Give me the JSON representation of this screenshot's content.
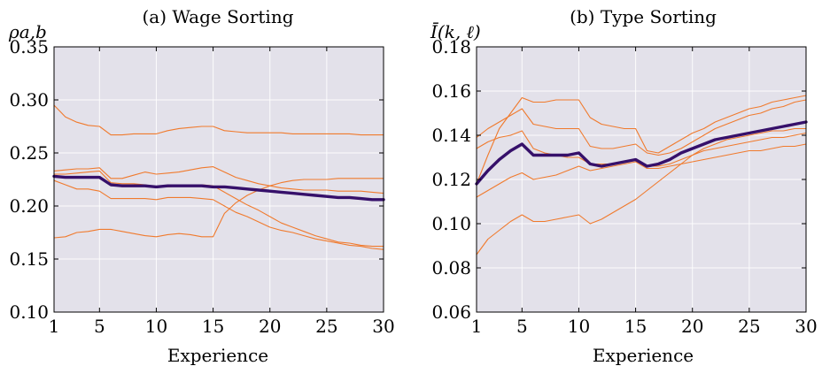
{
  "chart_data": [
    {
      "type": "line",
      "title": "(a) Wage Sorting",
      "ylabel": "ρa,b",
      "xlabel": "Experience",
      "xlim": [
        1,
        30
      ],
      "ylim": [
        0.1,
        0.35
      ],
      "xticks": [
        1,
        5,
        10,
        15,
        20,
        25,
        30
      ],
      "xtick_labels": [
        "1",
        "5",
        "10",
        "15",
        "20",
        "25",
        "30"
      ],
      "yticks": [
        0.1,
        0.15,
        0.2,
        0.25,
        0.3,
        0.35
      ],
      "ytick_labels": [
        "0.10",
        "0.15",
        "0.20",
        "0.25",
        "0.30",
        "0.35"
      ],
      "grid": true,
      "x": [
        1,
        2,
        3,
        4,
        5,
        6,
        7,
        8,
        9,
        10,
        11,
        12,
        13,
        14,
        15,
        16,
        17,
        18,
        19,
        20,
        21,
        22,
        23,
        24,
        25,
        26,
        27,
        28,
        29,
        30
      ],
      "series": [
        {
          "role": "thin",
          "color": "#f07a2d",
          "values": [
            0.295,
            0.284,
            0.279,
            0.276,
            0.275,
            0.267,
            0.267,
            0.268,
            0.268,
            0.268,
            0.271,
            0.273,
            0.274,
            0.275,
            0.275,
            0.271,
            0.27,
            0.269,
            0.269,
            0.269,
            0.269,
            0.268,
            0.268,
            0.268,
            0.268,
            0.268,
            0.268,
            0.267,
            0.267,
            0.267
          ]
        },
        {
          "role": "thin",
          "color": "#f07a2d",
          "values": [
            0.233,
            0.234,
            0.235,
            0.235,
            0.236,
            0.226,
            0.226,
            0.229,
            0.232,
            0.23,
            0.231,
            0.232,
            0.234,
            0.236,
            0.237,
            0.232,
            0.227,
            0.224,
            0.221,
            0.219,
            0.217,
            0.216,
            0.215,
            0.215,
            0.215,
            0.214,
            0.214,
            0.214,
            0.213,
            0.212
          ]
        },
        {
          "role": "thin",
          "color": "#f07a2d",
          "values": [
            0.23,
            0.23,
            0.231,
            0.232,
            0.233,
            0.222,
            0.221,
            0.221,
            0.22,
            0.218,
            0.218,
            0.219,
            0.22,
            0.22,
            0.219,
            0.213,
            0.207,
            0.201,
            0.196,
            0.19,
            0.184,
            0.18,
            0.176,
            0.172,
            0.169,
            0.166,
            0.165,
            0.163,
            0.162,
            0.162
          ]
        },
        {
          "role": "thin",
          "color": "#f07a2d",
          "values": [
            0.224,
            0.22,
            0.216,
            0.216,
            0.214,
            0.207,
            0.207,
            0.207,
            0.207,
            0.206,
            0.208,
            0.208,
            0.208,
            0.207,
            0.206,
            0.2,
            0.194,
            0.19,
            0.185,
            0.18,
            0.177,
            0.175,
            0.172,
            0.169,
            0.167,
            0.165,
            0.163,
            0.162,
            0.16,
            0.159
          ]
        },
        {
          "role": "thin",
          "color": "#f07a2d",
          "values": [
            0.17,
            0.171,
            0.175,
            0.176,
            0.178,
            0.178,
            0.176,
            0.174,
            0.172,
            0.171,
            0.173,
            0.174,
            0.173,
            0.171,
            0.171,
            0.193,
            0.203,
            0.21,
            0.215,
            0.219,
            0.222,
            0.224,
            0.225,
            0.225,
            0.225,
            0.226,
            0.226,
            0.226,
            0.226,
            0.226
          ]
        },
        {
          "role": "mean",
          "color": "#36106a",
          "values": [
            0.228,
            0.227,
            0.227,
            0.227,
            0.227,
            0.22,
            0.219,
            0.219,
            0.219,
            0.218,
            0.219,
            0.219,
            0.219,
            0.219,
            0.218,
            0.218,
            0.217,
            0.216,
            0.215,
            0.214,
            0.213,
            0.212,
            0.211,
            0.21,
            0.209,
            0.208,
            0.208,
            0.207,
            0.206,
            0.206
          ]
        }
      ]
    },
    {
      "type": "line",
      "title": "(b) Type Sorting",
      "ylabel": "Ī(k, ℓ)",
      "xlabel": "Experience",
      "xlim": [
        1,
        30
      ],
      "ylim": [
        0.06,
        0.18
      ],
      "xticks": [
        1,
        5,
        10,
        15,
        20,
        25,
        30
      ],
      "xtick_labels": [
        "1",
        "5",
        "10",
        "15",
        "20",
        "25",
        "30"
      ],
      "yticks": [
        0.06,
        0.08,
        0.1,
        0.12,
        0.14,
        0.16,
        0.18
      ],
      "ytick_labels": [
        "0.06",
        "0.08",
        "0.10",
        "0.12",
        "0.14",
        "0.16",
        "0.18"
      ],
      "grid": true,
      "x": [
        1,
        2,
        3,
        4,
        5,
        6,
        7,
        8,
        9,
        10,
        11,
        12,
        13,
        14,
        15,
        16,
        17,
        18,
        19,
        20,
        21,
        22,
        23,
        24,
        25,
        26,
        27,
        28,
        29,
        30
      ],
      "series": [
        {
          "role": "thin",
          "color": "#f07a2d",
          "values": [
            0.118,
            0.131,
            0.143,
            0.15,
            0.157,
            0.155,
            0.155,
            0.156,
            0.156,
            0.156,
            0.148,
            0.145,
            0.144,
            0.143,
            0.143,
            0.133,
            0.132,
            0.135,
            0.138,
            0.141,
            0.143,
            0.146,
            0.148,
            0.15,
            0.152,
            0.153,
            0.155,
            0.156,
            0.157,
            0.158
          ]
        },
        {
          "role": "thin",
          "color": "#f07a2d",
          "values": [
            0.139,
            0.143,
            0.146,
            0.149,
            0.152,
            0.145,
            0.144,
            0.143,
            0.143,
            0.143,
            0.135,
            0.134,
            0.134,
            0.135,
            0.136,
            0.132,
            0.131,
            0.132,
            0.134,
            0.137,
            0.14,
            0.143,
            0.145,
            0.147,
            0.149,
            0.15,
            0.152,
            0.153,
            0.155,
            0.156
          ]
        },
        {
          "role": "thin",
          "color": "#f07a2d",
          "values": [
            0.134,
            0.137,
            0.139,
            0.14,
            0.142,
            0.134,
            0.132,
            0.131,
            0.13,
            0.13,
            0.127,
            0.127,
            0.127,
            0.128,
            0.129,
            0.126,
            0.126,
            0.127,
            0.129,
            0.131,
            0.133,
            0.134,
            0.135,
            0.136,
            0.137,
            0.138,
            0.139,
            0.139,
            0.14,
            0.141
          ]
        },
        {
          "role": "thin",
          "color": "#f07a2d",
          "values": [
            0.112,
            0.115,
            0.118,
            0.121,
            0.123,
            0.12,
            0.121,
            0.122,
            0.124,
            0.126,
            0.124,
            0.125,
            0.126,
            0.127,
            0.128,
            0.125,
            0.125,
            0.126,
            0.127,
            0.128,
            0.129,
            0.13,
            0.131,
            0.132,
            0.133,
            0.133,
            0.134,
            0.135,
            0.135,
            0.136
          ]
        },
        {
          "role": "thin",
          "color": "#f07a2d",
          "values": [
            0.086,
            0.093,
            0.097,
            0.101,
            0.104,
            0.101,
            0.101,
            0.102,
            0.103,
            0.104,
            0.1,
            0.102,
            0.105,
            0.108,
            0.111,
            0.115,
            0.119,
            0.123,
            0.127,
            0.131,
            0.134,
            0.136,
            0.138,
            0.139,
            0.14,
            0.141,
            0.142,
            0.142,
            0.143,
            0.143
          ]
        },
        {
          "role": "mean",
          "color": "#36106a",
          "values": [
            0.118,
            0.124,
            0.129,
            0.133,
            0.136,
            0.131,
            0.131,
            0.131,
            0.131,
            0.132,
            0.127,
            0.126,
            0.127,
            0.128,
            0.129,
            0.126,
            0.127,
            0.129,
            0.132,
            0.134,
            0.136,
            0.138,
            0.139,
            0.14,
            0.141,
            0.142,
            0.143,
            0.144,
            0.145,
            0.146
          ]
        }
      ]
    }
  ]
}
